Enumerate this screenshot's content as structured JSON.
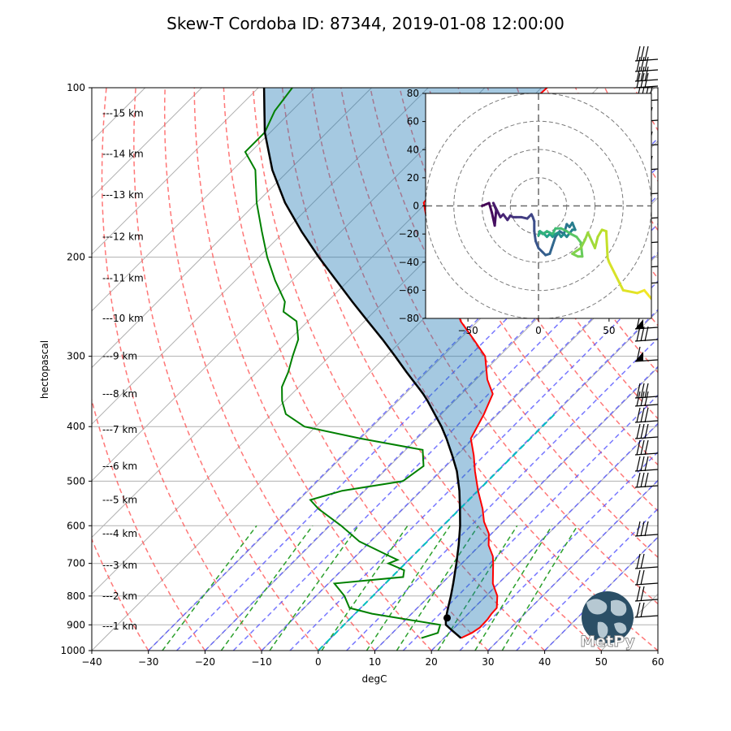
{
  "title": "Skew-T Cordoba ID: 87344, 2019-01-08 12:00:00",
  "colors": {
    "temperature": "#ff0000",
    "dewpoint": "#008000",
    "parcel": "#000000",
    "cape_fill": "#f08080",
    "cin_fill": "#1f77b4",
    "dry_adiabats": "#ff5555",
    "moist_adiabats": "#5555ff",
    "mixing_ratio": "#2ca02c",
    "freezing_isotherm": "#00bfbf"
  },
  "logo_text": "MetPy",
  "chart_data": [
    {
      "type": "line",
      "subtype": "skew-t",
      "title": "Skew-T Cordoba ID: 87344, 2019-01-08 12:00:00",
      "xlabel": "degC",
      "ylabel": "hectopascal",
      "xlim": [
        -40,
        60
      ],
      "ylim": [
        1000,
        100
      ],
      "yscale": "log",
      "grid": true,
      "x_ticks": [
        "−40",
        "−30",
        "−20",
        "−10",
        "0",
        "10",
        "20",
        "30",
        "40",
        "50",
        "60"
      ],
      "y_ticks": [
        "100",
        "200",
        "300",
        "400",
        "500",
        "600",
        "700",
        "800",
        "900",
        "1000"
      ],
      "height_labels": [
        "---1 km",
        "---2 km",
        "---3 km",
        "---4 km",
        "---5 km",
        "---6 km",
        "---7 km",
        "---8 km",
        "---9 km",
        "---10 km",
        "---11 km",
        "---12 km",
        "---13 km",
        "---14 km",
        "---15 km"
      ],
      "height_pressures": [
        905,
        800,
        705,
        620,
        540,
        470,
        405,
        350,
        300,
        257,
        218,
        184,
        155,
        131,
        111
      ],
      "series": [
        {
          "key": "temperature",
          "pressure": [
            950,
            930,
            910,
            880,
            860,
            840,
            800,
            760,
            700,
            680,
            650,
            620,
            590,
            560,
            520,
            480,
            450,
            420,
            380,
            350,
            330,
            300,
            280,
            260,
            240,
            220,
            200,
            180,
            160,
            140,
            130,
            120,
            110,
            100
          ],
          "temp": [
            23.0,
            24.0,
            24.5,
            24.4,
            24.1,
            24.0,
            22.0,
            19.0,
            15.5,
            14.2,
            11.5,
            9.5,
            6.5,
            4.0,
            0.0,
            -4.0,
            -7.0,
            -10.5,
            -12.5,
            -14.5,
            -18.0,
            -22.5,
            -27.5,
            -33.0,
            -37.5,
            -42.5,
            -48.5,
            -54.5,
            -60.5,
            -61.5,
            -53.0,
            -53.5,
            -59.5,
            -59.0
          ]
        },
        {
          "key": "dewpoint",
          "pressure": [
            950,
            930,
            915,
            900,
            880,
            860,
            840,
            800,
            760,
            740,
            720,
            700,
            690,
            680,
            640,
            600,
            560,
            540,
            520,
            500,
            470,
            440,
            420,
            400,
            380,
            360,
            340,
            320,
            300,
            280,
            260,
            250,
            240,
            220,
            200,
            180,
            160,
            140,
            130,
            120,
            110,
            100
          ],
          "dewpoint": [
            16.0,
            18.0,
            17.5,
            17.0,
            10.0,
            3.0,
            -2.0,
            -5.0,
            -9.0,
            2.0,
            1.0,
            -3.0,
            -2.0,
            -4.0,
            -12.0,
            -18.0,
            -25.0,
            -28.0,
            -24.0,
            -15.0,
            -14.0,
            -17.0,
            -30.0,
            -42.0,
            -47.5,
            -50.5,
            -53.0,
            -54.5,
            -56.5,
            -58.5,
            -62.0,
            -66.0,
            -67.5,
            -73.0,
            -78.5,
            -84.0,
            -90.0,
            -96.0,
            -101.0,
            -101.0,
            -103.0,
            -104.0
          ]
        },
        {
          "key": "parcel",
          "pressure": [
            950,
            920,
            900,
            880,
            860,
            840,
            800,
            760,
            700,
            650,
            600,
            560,
            520,
            480,
            450,
            420,
            400,
            380,
            360,
            350,
            340,
            320,
            300,
            280,
            260,
            240,
            220,
            200,
            180,
            160,
            140,
            120,
            100
          ],
          "temp": [
            23.0,
            20.0,
            18.0,
            17.0,
            16.2,
            15.4,
            13.8,
            12.0,
            9.0,
            6.2,
            3.0,
            0.0,
            -3.3,
            -7.2,
            -10.8,
            -14.8,
            -17.8,
            -21.2,
            -24.8,
            -26.8,
            -29.0,
            -33.6,
            -38.4,
            -43.6,
            -49.4,
            -55.6,
            -62.2,
            -69.4,
            -77.0,
            -85.0,
            -93.0,
            -101.0,
            -109.0
          ]
        }
      ],
      "lcl": {
        "pressure": 875,
        "temp": 17.0
      },
      "freezing_isotherm": 0,
      "mixing_ratio_top_hpa": 600
    },
    {
      "type": "line",
      "subtype": "hodograph",
      "xlim": [
        -80,
        80
      ],
      "ylim": [
        -80,
        80
      ],
      "x_ticks": [
        "−50",
        "0",
        "50"
      ],
      "y_ticks": [
        "80",
        "60",
        "40",
        "20",
        "0",
        "−20",
        "−40",
        "−60",
        "−80"
      ],
      "rings": [
        20,
        40,
        60,
        80
      ],
      "colormap": "viridis",
      "u": [
        -40,
        -35,
        -33,
        -31,
        -30,
        -32,
        -27,
        -25,
        -22,
        -20,
        -18,
        -16,
        -12,
        -8,
        -5,
        -4,
        -3,
        -3,
        -2,
        0,
        3,
        5,
        8,
        10,
        12,
        15,
        18,
        20,
        22,
        24,
        26,
        24,
        20,
        18,
        16,
        14,
        12,
        10,
        8,
        6,
        4,
        1,
        0,
        1,
        3,
        6,
        10,
        12,
        16,
        20,
        23,
        27,
        30,
        31,
        28,
        24,
        30,
        33,
        35,
        40,
        42,
        45,
        48,
        49,
        50,
        60,
        70,
        75,
        80
      ],
      "v": [
        0,
        2,
        -5,
        -14,
        -3,
        2,
        -8,
        -6,
        -10,
        -7,
        -8,
        -8,
        -8,
        -9,
        -6,
        -8,
        -11,
        -18,
        -25,
        -30,
        -33,
        -35,
        -34,
        -28,
        -22,
        -18,
        -20,
        -13,
        -15,
        -12,
        -17,
        -17,
        -22,
        -20,
        -22,
        -19,
        -20,
        -22,
        -20,
        -22,
        -20,
        -18,
        -21,
        -18,
        -20,
        -18,
        -20,
        -16,
        -16,
        -18,
        -20,
        -22,
        -26,
        -36,
        -36,
        -34,
        -30,
        -24,
        -19,
        -30,
        -22,
        -17,
        -18,
        -37,
        -40,
        -60,
        -62,
        -60,
        -66
      ]
    }
  ]
}
